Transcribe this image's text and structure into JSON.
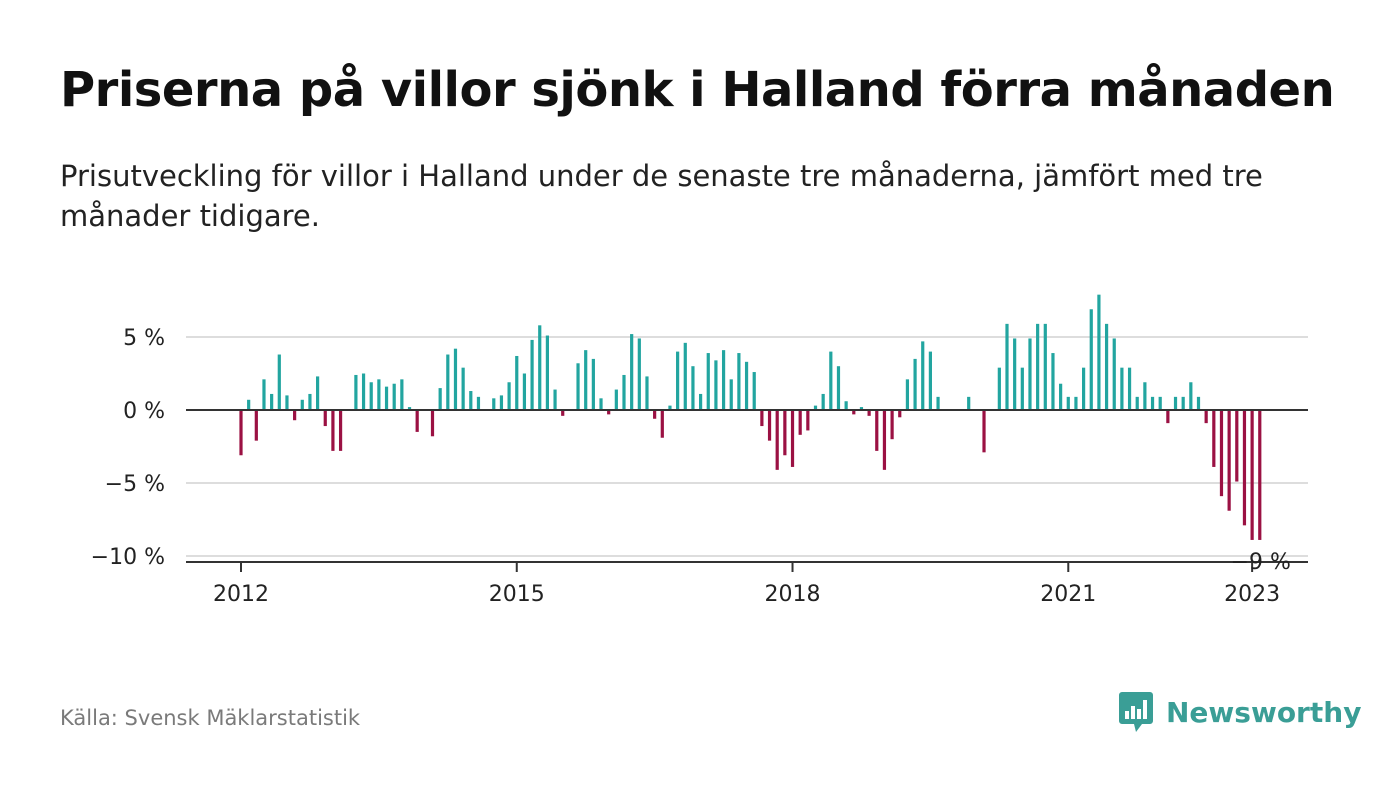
{
  "title": "Priserna på villor sjönk i Halland förra månaden",
  "subtitle": "Prisutveckling för villor i Halland under de senaste tre månaderna, jämfört med tre månader tidigare.",
  "source": "Källa: Svensk Mäklarstatistik",
  "brand": {
    "name": "Newsworthy",
    "icon": "bar-chart-speech-bubble-icon",
    "color": "#3a9e96"
  },
  "colors": {
    "positive": "#22a5a0",
    "negative": "#9b1143",
    "gridline": "#dddddd",
    "zero_line": "#333333"
  },
  "chart_data": {
    "type": "bar",
    "title": "Priserna på villor sjönk i Halland förra månaden",
    "subtitle": "Prisutveckling för villor i Halland under de senaste tre månaderna, jämfört med tre månader tidigare.",
    "xlabel": "",
    "ylabel": "",
    "ylim": [
      -10,
      9
    ],
    "y_ticks": [
      {
        "value": 5,
        "label": "5 %"
      },
      {
        "value": 0,
        "label": "0 %"
      },
      {
        "value": -5,
        "label": "−5 %"
      },
      {
        "value": -10,
        "label": "−10 %"
      }
    ],
    "x_ticks": [
      {
        "year": 2012,
        "label": "2012"
      },
      {
        "year": 2015,
        "label": "2015"
      },
      {
        "year": 2018,
        "label": "2018"
      },
      {
        "year": 2021,
        "label": "2021"
      },
      {
        "year": 2023,
        "label": "2023"
      }
    ],
    "start_month": "2012-01",
    "last_label": "−9 %",
    "grid": true,
    "months": [
      "2012-01",
      "2012-02",
      "2012-03",
      "2012-04",
      "2012-05",
      "2012-06",
      "2012-07",
      "2012-08",
      "2012-09",
      "2012-10",
      "2012-11",
      "2012-12",
      "2013-01",
      "2013-02",
      "2013-03",
      "2013-04",
      "2013-05",
      "2013-06",
      "2013-07",
      "2013-08",
      "2013-09",
      "2013-10",
      "2013-11",
      "2013-12",
      "2014-01",
      "2014-02",
      "2014-03",
      "2014-04",
      "2014-05",
      "2014-06",
      "2014-07",
      "2014-08",
      "2014-09",
      "2014-10",
      "2014-11",
      "2014-12",
      "2015-01",
      "2015-02",
      "2015-03",
      "2015-04",
      "2015-05",
      "2015-06",
      "2015-07",
      "2015-08",
      "2015-09",
      "2015-10",
      "2015-11",
      "2015-12",
      "2016-01",
      "2016-02",
      "2016-03",
      "2016-04",
      "2016-05",
      "2016-06",
      "2016-07",
      "2016-08",
      "2016-09",
      "2016-10",
      "2016-11",
      "2016-12",
      "2017-01",
      "2017-02",
      "2017-03",
      "2017-04",
      "2017-05",
      "2017-06",
      "2017-07",
      "2017-08",
      "2017-09",
      "2017-10",
      "2017-11",
      "2017-12",
      "2018-01",
      "2018-02",
      "2018-03",
      "2018-04",
      "2018-05",
      "2018-06",
      "2018-07",
      "2018-08",
      "2018-09",
      "2018-10",
      "2018-11",
      "2018-12",
      "2019-01",
      "2019-02",
      "2019-03",
      "2019-04",
      "2019-05",
      "2019-06",
      "2019-07",
      "2019-08",
      "2019-09",
      "2019-10",
      "2019-11",
      "2019-12",
      "2020-01",
      "2020-02",
      "2020-03",
      "2020-04",
      "2020-05",
      "2020-06",
      "2020-07",
      "2020-08",
      "2020-09",
      "2020-10",
      "2020-11",
      "2020-12",
      "2021-01",
      "2021-02",
      "2021-03",
      "2021-04",
      "2021-05",
      "2021-06",
      "2021-07",
      "2021-08",
      "2021-09",
      "2021-10",
      "2021-11",
      "2021-12",
      "2022-01",
      "2022-02",
      "2022-03",
      "2022-04",
      "2022-05",
      "2022-06",
      "2022-07",
      "2022-08",
      "2022-09",
      "2022-10",
      "2022-11",
      "2022-12",
      "2023-01",
      "2023-02"
    ],
    "values": [
      -3.1,
      0.7,
      -2.1,
      2.1,
      1.1,
      3.8,
      1.0,
      -0.7,
      0.7,
      1.1,
      2.3,
      -1.1,
      -2.8,
      -2.8,
      0,
      2.4,
      2.5,
      1.9,
      2.1,
      1.6,
      1.8,
      2.1,
      0.2,
      -1.5,
      0,
      -1.8,
      1.5,
      3.8,
      4.2,
      2.9,
      1.3,
      0.9,
      0,
      0.8,
      1.0,
      1.9,
      3.7,
      2.5,
      4.8,
      5.8,
      5.1,
      1.4,
      -0.4,
      0,
      3.2,
      4.1,
      3.5,
      0.8,
      -0.3,
      1.4,
      2.4,
      5.2,
      4.9,
      2.3,
      -0.6,
      -1.9,
      0.3,
      4.0,
      4.6,
      3.0,
      1.1,
      3.9,
      3.4,
      4.1,
      2.1,
      3.9,
      3.3,
      2.6,
      -1.1,
      -2.1,
      -4.1,
      -3.1,
      -3.9,
      -1.7,
      -1.4,
      0.3,
      1.1,
      4.0,
      3.0,
      0.6,
      -0.3,
      0.2,
      -0.4,
      -2.8,
      -4.1,
      -2.0,
      -0.5,
      2.1,
      3.5,
      4.7,
      4.0,
      0.9,
      0,
      0,
      0,
      0.9,
      0,
      -2.9,
      0,
      2.9,
      5.9,
      4.9,
      2.9,
      4.9,
      5.9,
      5.9,
      3.9,
      1.8,
      0.9,
      0.9,
      2.9,
      6.9,
      7.9,
      5.9,
      4.9,
      2.9,
      2.9,
      0.9,
      1.9,
      0.9,
      0.9,
      -0.9,
      0.9,
      0.9,
      1.9,
      0.9,
      -0.9,
      -3.9,
      -5.9,
      -6.9,
      -4.9,
      -7.9,
      -8.9,
      -8.9
    ]
  }
}
